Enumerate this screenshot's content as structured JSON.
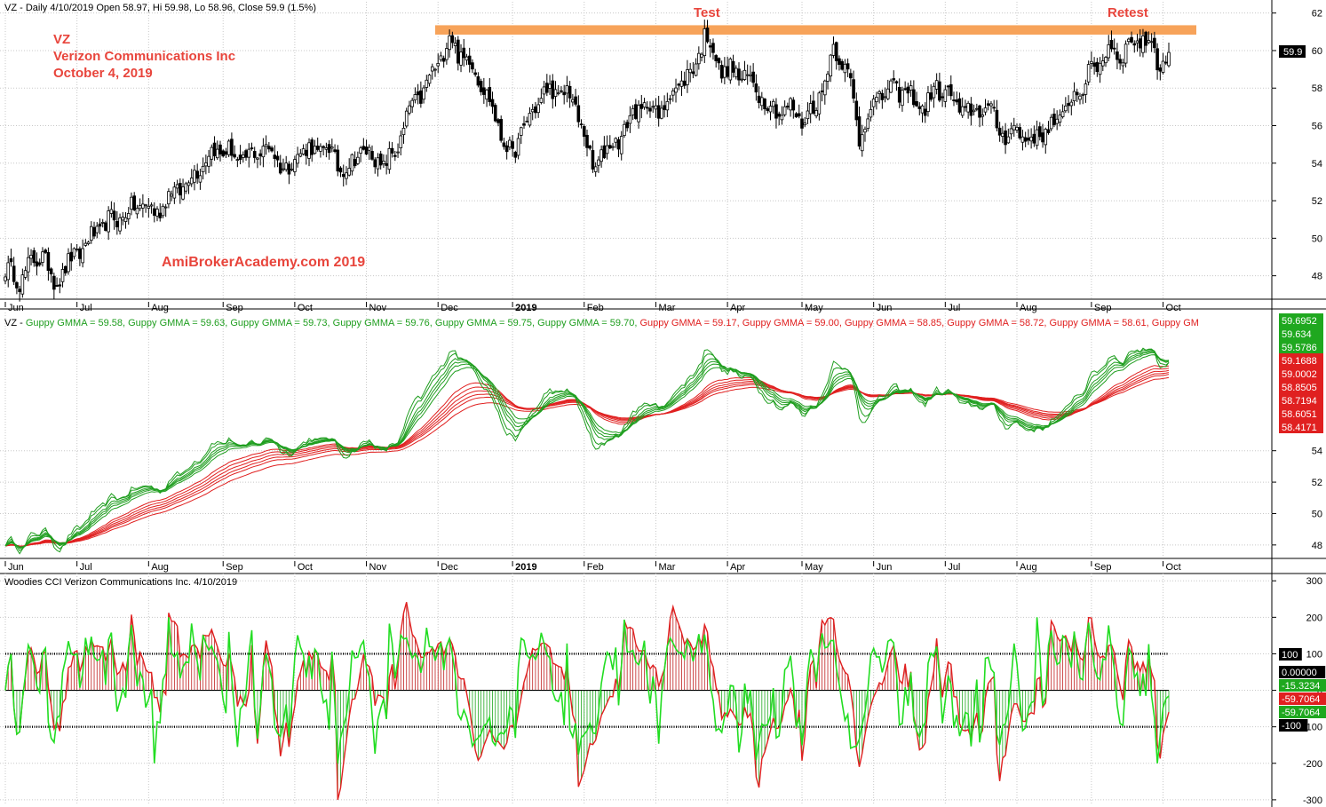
{
  "panes": {
    "price": {
      "header": "VZ - Daily 4/10/2019 Open 58.97, Hi 59.98, Lo 58.96, Close 59.9 (1.5%)",
      "annotation_lines": [
        "VZ",
        "Verizon Communications Inc",
        "October 4, 2019"
      ],
      "watermark": "AmiBrokerAcademy.com   2019",
      "label_test": "Test",
      "label_retest": "Retest",
      "last_price_tag": "59.9"
    },
    "gmma": {
      "header_prefix": "VZ - ",
      "header_items": [
        {
          "text": "Guppy GMMA = 59.58,",
          "color": "#1f9e1f"
        },
        {
          "text": "Guppy GMMA = 59.63,",
          "color": "#1f9e1f"
        },
        {
          "text": "Guppy GMMA = 59.73,",
          "color": "#1f9e1f"
        },
        {
          "text": "Guppy GMMA = 59.76,",
          "color": "#1f9e1f"
        },
        {
          "text": "Guppy GMMA = 59.75,",
          "color": "#1f9e1f"
        },
        {
          "text": "Guppy GMMA = 59.70,",
          "color": "#1f9e1f"
        },
        {
          "text": "Guppy GMMA = 59.17,",
          "color": "#e02020"
        },
        {
          "text": "Guppy GMMA = 59.00,",
          "color": "#e02020"
        },
        {
          "text": "Guppy GMMA = 58.85,",
          "color": "#e02020"
        },
        {
          "text": "Guppy GMMA = 58.72,",
          "color": "#e02020"
        },
        {
          "text": "Guppy GMMA = 58.61,",
          "color": "#e02020"
        },
        {
          "text": "Guppy GM",
          "color": "#e02020"
        }
      ],
      "value_tags_green": [
        "59.6952",
        "59.634",
        "59.5786"
      ],
      "value_tags_red": [
        "59.1688",
        "59.0002",
        "58.8505",
        "58.7194",
        "58.6051",
        "58.4171"
      ]
    },
    "cci": {
      "header": "Woodies CCI  Verizon Communications Inc. 4/10/2019",
      "value_tags": [
        {
          "text": "100",
          "bg": "#000000",
          "fg": "#ffffff"
        },
        {
          "text": "0.00000",
          "bg": "#000000",
          "fg": "#ffffff"
        },
        {
          "text": "-15.3234",
          "bg": "#1fa81f",
          "fg": "#ffffff"
        },
        {
          "text": "-59.7064",
          "bg": "#e02020",
          "fg": "#ffffff"
        },
        {
          "text": "-59.7064",
          "bg": "#1fa81f",
          "fg": "#ffffff"
        },
        {
          "text": "-100",
          "bg": "#000000",
          "fg": "#ffffff"
        }
      ]
    }
  },
  "colors": {
    "resistance_band": "#f7a35a",
    "annotation_red": "#e8453c",
    "gmma_short": "#1f9e1f",
    "gmma_long": "#e02020",
    "cci_line": "#22dd22",
    "cci_turbo": "#e02020",
    "grid": "#c8c8c8"
  },
  "chart_data": [
    {
      "type": "candlestick",
      "title": "VZ - Daily 4/10/2019 Open 58.97, Hi 59.98, Lo 58.96, Close 59.9 (1.5%)",
      "x_tick_labels": [
        "Jun",
        "Jul",
        "Aug",
        "Sep",
        "Oct",
        "Nov",
        "Dec",
        "2019",
        "Feb",
        "Mar",
        "Apr",
        "May",
        "Jun",
        "Jul",
        "Aug",
        "Sep",
        "Oct"
      ],
      "y_ticks": [
        48,
        50,
        52,
        54,
        56,
        58,
        60,
        62
      ],
      "ylim": [
        46.8,
        62.6
      ],
      "resistance_band": [
        60.85,
        61.35
      ],
      "annotations": [
        "Test",
        "Retest"
      ],
      "anchors": [
        [
          0,
          48.3
        ],
        [
          5,
          47.8
        ],
        [
          9,
          48.6
        ],
        [
          13,
          49.2
        ],
        [
          17,
          47.6
        ],
        [
          22,
          48.6
        ],
        [
          28,
          49.7
        ],
        [
          35,
          50.8
        ],
        [
          42,
          51.3
        ],
        [
          48,
          51.9
        ],
        [
          52,
          51.3
        ],
        [
          58,
          52.4
        ],
        [
          63,
          52.9
        ],
        [
          68,
          53.9
        ],
        [
          73,
          54.7
        ],
        [
          78,
          54.6
        ],
        [
          82,
          54.1
        ],
        [
          86,
          54.4
        ],
        [
          91,
          54.9
        ],
        [
          95,
          54.2
        ],
        [
          99,
          53.6
        ],
        [
          103,
          54.8
        ],
        [
          108,
          54.6
        ],
        [
          112,
          54.9
        ],
        [
          116,
          53.9
        ],
        [
          120,
          53.7
        ],
        [
          124,
          54.8
        ],
        [
          128,
          54.3
        ],
        [
          132,
          53.9
        ],
        [
          136,
          54.5
        ],
        [
          141,
          56.8
        ],
        [
          146,
          57.9
        ],
        [
          151,
          59.3
        ],
        [
          155,
          60.7
        ],
        [
          158,
          59.9
        ],
        [
          162,
          59.4
        ],
        [
          166,
          58.4
        ],
        [
          170,
          56.8
        ],
        [
          174,
          55.2
        ],
        [
          177,
          54.2
        ],
        [
          180,
          55.8
        ],
        [
          184,
          56.6
        ],
        [
          188,
          57.9
        ],
        [
          192,
          57.6
        ],
        [
          196,
          57.9
        ],
        [
          199,
          56.8
        ],
        [
          202,
          55.7
        ],
        [
          205,
          53.4
        ],
        [
          208,
          54.6
        ],
        [
          212,
          54.9
        ],
        [
          216,
          55.8
        ],
        [
          220,
          56.8
        ],
        [
          224,
          57.1
        ],
        [
          228,
          56.6
        ],
        [
          232,
          57.6
        ],
        [
          236,
          58.4
        ],
        [
          240,
          58.9
        ],
        [
          244,
          60.9
        ],
        [
          246,
          60.3
        ],
        [
          250,
          58.9
        ],
        [
          254,
          58.9
        ],
        [
          258,
          58.6
        ],
        [
          262,
          58.1
        ],
        [
          266,
          57.1
        ],
        [
          270,
          56.8
        ],
        [
          274,
          56.9
        ],
        [
          278,
          56.3
        ],
        [
          282,
          56.9
        ],
        [
          286,
          58.4
        ],
        [
          289,
          60.1
        ],
        [
          292,
          59.6
        ],
        [
          295,
          58.1
        ],
        [
          298,
          55.4
        ],
        [
          301,
          56.6
        ],
        [
          305,
          57.6
        ],
        [
          309,
          57.9
        ],
        [
          313,
          57.9
        ],
        [
          317,
          57.4
        ],
        [
          321,
          56.9
        ],
        [
          325,
          58.1
        ],
        [
          329,
          57.6
        ],
        [
          333,
          56.9
        ],
        [
          337,
          56.6
        ],
        [
          341,
          57.1
        ],
        [
          345,
          56.4
        ],
        [
          349,
          55.4
        ],
        [
          353,
          55.9
        ],
        [
          357,
          55.1
        ],
        [
          361,
          55.6
        ],
        [
          365,
          55.9
        ],
        [
          369,
          56.6
        ],
        [
          373,
          57.6
        ],
        [
          377,
          58.4
        ],
        [
          381,
          59.3
        ],
        [
          385,
          60.1
        ],
        [
          389,
          59.8
        ],
        [
          393,
          60.4
        ],
        [
          396,
          60.6
        ],
        [
          400,
          60.4
        ],
        [
          403,
          59.1
        ],
        [
          406,
          59.9
        ]
      ],
      "last_close": 59.9
    },
    {
      "type": "line",
      "title": "VZ - Guppy GMMA",
      "series": [
        {
          "name": "Guppy GMMA",
          "group": "short"
        },
        {
          "name": "Guppy GMMA",
          "group": "long"
        }
      ],
      "x_tick_labels": [
        "Jun",
        "Jul",
        "Aug",
        "Sep",
        "Oct",
        "Nov",
        "Dec",
        "2019",
        "Feb",
        "Mar",
        "Apr",
        "May",
        "Jun",
        "Jul",
        "Aug",
        "Sep",
        "Oct"
      ],
      "y_ticks": [
        48,
        50,
        52,
        54
      ],
      "short_last": [
        59.58,
        59.63,
        59.73,
        59.76,
        59.75,
        59.7
      ],
      "long_last": [
        59.17,
        59.0,
        58.85,
        58.72,
        58.61
      ]
    },
    {
      "type": "line",
      "title": "Woodies CCI  Verizon Communications Inc. 4/10/2019",
      "x_tick_labels": [],
      "y_ticks": [
        -300,
        -200,
        -100,
        0,
        100,
        200,
        300
      ],
      "ylim": [
        -310,
        320
      ],
      "levels": [
        -100,
        0,
        100
      ],
      "last_values": {
        "cci": -59.7064,
        "turbo": -15.3234
      }
    }
  ]
}
